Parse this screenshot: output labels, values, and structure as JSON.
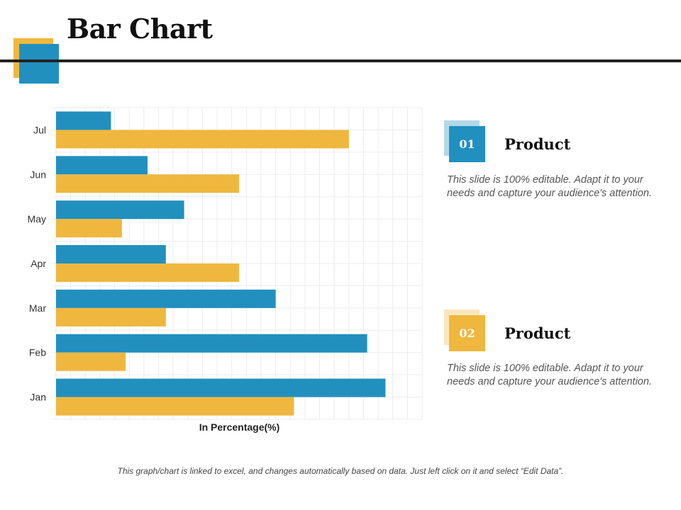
{
  "title": "Bar Chart",
  "colors": {
    "blue": "#2190bf",
    "yellow": "#efb73e",
    "rule": "#222222"
  },
  "chart_data": {
    "type": "bar",
    "orientation": "horizontal",
    "categories": [
      "Jan",
      "Feb",
      "Mar",
      "Apr",
      "May",
      "Jun",
      "Jul"
    ],
    "series": [
      {
        "color": "#2190bf",
        "values": [
          90,
          85,
          60,
          30,
          35,
          25,
          15
        ]
      },
      {
        "color": "#efb73e",
        "values": [
          65,
          19,
          30,
          50,
          18,
          50,
          80
        ]
      }
    ],
    "xlabel": "In Percentage(%)",
    "ylabel": "",
    "xlim": [
      0,
      100
    ],
    "grid": true,
    "legend": "none"
  },
  "cards": [
    {
      "number": "01",
      "heading": "Product",
      "text": "This slide is 100% editable. Adapt it to your needs and capture your audience's attention.",
      "color": "#2190bf"
    },
    {
      "number": "02",
      "heading": "Product",
      "text": "This slide is 100% editable. Adapt it to your needs and capture your audience's attention.",
      "color": "#efb73e"
    }
  ],
  "footnote": "This graph/chart is linked to excel, and changes automatically based on data. Just left click on it and select “Edit Data”."
}
